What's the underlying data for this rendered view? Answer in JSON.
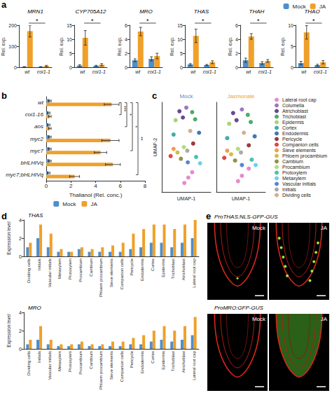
{
  "chart_data": [
    {
      "panel": "a",
      "type": "bar",
      "title": "MRN1",
      "categories": [
        "wt",
        "coi1-1"
      ],
      "y_label": "Rel. exp.",
      "ylim": [
        0,
        200
      ],
      "yticks": [
        0,
        100,
        200
      ],
      "annotations": [
        "*"
      ],
      "series": [
        {
          "name": "Mock",
          "color": "#4e8fc9",
          "values": [
            2,
            2
          ],
          "errors": [
            1,
            1
          ]
        },
        {
          "name": "JA",
          "color": "#f0a02a",
          "values": [
            172,
            6
          ],
          "errors": [
            28,
            3
          ]
        }
      ]
    },
    {
      "panel": "a",
      "type": "bar",
      "title": "CYP705A12",
      "categories": [
        "wt",
        "coi1-1"
      ],
      "y_label": "Rel. exp.",
      "ylim": [
        0,
        15
      ],
      "yticks": [
        0,
        5,
        10,
        15
      ],
      "annotations": [
        "*"
      ],
      "series": [
        {
          "name": "Mock",
          "color": "#4e8fc9",
          "values": [
            0.6,
            0.5
          ],
          "errors": [
            0.3,
            0.2
          ]
        },
        {
          "name": "JA",
          "color": "#f0a02a",
          "values": [
            10.5,
            0.9
          ],
          "errors": [
            2.6,
            0.4
          ]
        }
      ]
    },
    {
      "panel": "a",
      "type": "bar",
      "title": "MRO",
      "categories": [
        "wt",
        "coi1-1"
      ],
      "y_label": "Rel. exp.",
      "ylim": [
        0,
        6
      ],
      "yticks": [
        0,
        2,
        4,
        6
      ],
      "annotations": [
        "*"
      ],
      "series": [
        {
          "name": "Mock",
          "color": "#4e8fc9",
          "values": [
            1,
            1.2
          ],
          "errors": [
            0.2,
            0.3
          ]
        },
        {
          "name": "JA",
          "color": "#f0a02a",
          "values": [
            5.1,
            1.6
          ],
          "errors": [
            0.6,
            0.4
          ]
        }
      ]
    },
    {
      "panel": "a",
      "type": "bar",
      "title": "THAS",
      "categories": [
        "wt",
        "coi1-1"
      ],
      "y_label": "Rel. exp.",
      "ylim": [
        0,
        15
      ],
      "yticks": [
        0,
        5,
        10,
        15
      ],
      "annotations": [
        "*"
      ],
      "series": [
        {
          "name": "Mock",
          "color": "#4e8fc9",
          "values": [
            1,
            0.8
          ],
          "errors": [
            0.3,
            0.2
          ]
        },
        {
          "name": "JA",
          "color": "#f0a02a",
          "values": [
            11.2,
            1.8
          ],
          "errors": [
            2.4,
            0.5
          ]
        }
      ]
    },
    {
      "panel": "a",
      "type": "bar",
      "title": "THAH",
      "categories": [
        "wt",
        "coi1-1"
      ],
      "y_label": "Rel. exp.",
      "ylim": [
        0,
        6
      ],
      "yticks": [
        0,
        2,
        4,
        6
      ],
      "annotations": [
        "*"
      ],
      "series": [
        {
          "name": "Mock",
          "color": "#4e8fc9",
          "values": [
            1,
            0.6
          ],
          "errors": [
            0.3,
            0.2
          ]
        },
        {
          "name": "JA",
          "color": "#f0a02a",
          "values": [
            4.4,
            0.9
          ],
          "errors": [
            0.4,
            0.2
          ]
        }
      ]
    },
    {
      "panel": "a",
      "type": "bar",
      "title": "THAO",
      "categories": [
        "wt",
        "coi1-1"
      ],
      "y_label": "Rel. exp.",
      "ylim": [
        0,
        10
      ],
      "yticks": [
        0,
        5,
        10
      ],
      "annotations": [
        "*"
      ],
      "legend": "top-right",
      "series": [
        {
          "name": "Mock",
          "color": "#4e8fc9",
          "values": [
            1,
            0.5
          ],
          "errors": [
            0.4,
            0.2
          ]
        },
        {
          "name": "JA",
          "color": "#f0a02a",
          "values": [
            8.3,
            1.2
          ],
          "errors": [
            1.6,
            0.4
          ]
        }
      ]
    },
    {
      "panel": "b",
      "type": "bar",
      "orientation": "horizontal",
      "categories": [
        "wt",
        "coi1-16",
        "aos",
        "myc2",
        "myc7",
        "bHLHIVq",
        "myc7;bHLHIVq"
      ],
      "x_label": "Thalianol (Rel. conc.)",
      "xlim": [
        0,
        8
      ],
      "xticks": [
        0,
        2,
        4,
        6,
        8
      ],
      "legend": "bottom",
      "series": [
        {
          "name": "Mock",
          "color": "#4e8fc9",
          "values": [
            0.3,
            0.2,
            0.2,
            0.3,
            0.3,
            0.3,
            0.2
          ],
          "errors": [
            0.1,
            0.1,
            0.1,
            0.1,
            0.1,
            0.1,
            0.1
          ]
        },
        {
          "name": "JA",
          "color": "#f0a02a",
          "values": [
            5.3,
            0.3,
            0.3,
            5.2,
            4.4,
            5.4,
            2.3
          ],
          "errors": [
            0.6,
            0.1,
            0.1,
            0.7,
            0.5,
            0.6,
            0.4
          ]
        }
      ],
      "annotations": [
        {
          "from": "wt",
          "to": "coi1-16",
          "text": "***"
        },
        {
          "from": "wt",
          "to": "aos",
          "text": "*"
        },
        {
          "from": "wt",
          "to": "myc7",
          "text": "*"
        },
        {
          "from": "wt",
          "to": "myc7;bHLHIVq",
          "text": "**"
        }
      ]
    },
    {
      "panel": "c",
      "type": "scatter",
      "title": "Mock",
      "color": "#4e8fc9",
      "x_label": "UMAP-1",
      "y_label": "UMAP-2",
      "xlim": [
        0,
        10
      ],
      "ylim": [
        0,
        10
      ],
      "tick_labels": false,
      "series": [
        {
          "name": "Lateral root cap",
          "color": "#e377c2",
          "values": [
            [
              4.6,
              1.0
            ],
            [
              5.4,
              1.6
            ],
            [
              6.2,
              2.2
            ]
          ]
        },
        {
          "name": "Columella",
          "color": "#8e5fb5",
          "values": [
            [
              5.0,
              9.4
            ]
          ]
        },
        {
          "name": "Atrichoblast",
          "color": "#4b2a7b",
          "values": [
            [
              3.6,
              9.0
            ],
            [
              4.3,
              8.3
            ]
          ]
        },
        {
          "name": "Trichoblast",
          "color": "#2e9e4f",
          "values": [
            [
              6.2,
              8.9
            ],
            [
              6.8,
              8.1
            ]
          ]
        },
        {
          "name": "Epidermis",
          "color": "#9acd5a",
          "values": [
            [
              2.8,
              8.0
            ]
          ]
        },
        {
          "name": "Cortex",
          "color": "#1f9e9e",
          "values": [
            [
              2.4,
              6.4
            ]
          ]
        },
        {
          "name": "Endodermis",
          "color": "#1f5fa8",
          "values": [
            [
              7.6,
              6.6
            ]
          ]
        },
        {
          "name": "Pericycle",
          "color": "#8b1a1a",
          "values": [
            [
              6.4,
              5.4
            ]
          ]
        },
        {
          "name": "Companion cells",
          "color": "#d62728",
          "values": [
            [
              1.8,
              4.0
            ]
          ]
        },
        {
          "name": "Sieve elements",
          "color": "#f08c2a",
          "values": [
            [
              2.4,
              4.8
            ]
          ]
        },
        {
          "name": "Phloem procambium",
          "color": "#c9b22e",
          "values": [
            [
              3.2,
              4.4
            ]
          ]
        },
        {
          "name": "Cambium",
          "color": "#7f7f2a",
          "values": [
            [
              3.9,
              3.7
            ]
          ]
        },
        {
          "name": "Procambium",
          "color": "#a5d66b",
          "values": [
            [
              4.5,
              5.0
            ]
          ]
        },
        {
          "name": "Protoxylem",
          "color": "#2ab7a0",
          "values": [
            [
              7.0,
              3.9
            ]
          ]
        },
        {
          "name": "Metaxylem",
          "color": "#55c8e8",
          "values": [
            [
              7.8,
              3.2
            ]
          ]
        },
        {
          "name": "Vascular initials",
          "color": "#3b6fd1",
          "values": [
            [
              5.3,
              3.3
            ]
          ]
        },
        {
          "name": "Initials",
          "color": "#9a9a9a",
          "values": [
            [
              5.2,
              4.6
            ]
          ]
        },
        {
          "name": "Dividing cells",
          "color": "#c9a27a",
          "values": [
            [
              5.8,
              6.8
            ]
          ]
        }
      ]
    },
    {
      "panel": "c",
      "type": "scatter",
      "title": "Jasmonate",
      "color": "#f0a02a",
      "x_label": "UMAP-1",
      "xlim": [
        0,
        10
      ],
      "ylim": [
        0,
        10
      ],
      "tick_labels": false,
      "legend": "right",
      "series": [
        {
          "name": "Lateral root cap",
          "color": "#e377c2",
          "values": [
            [
              4.4,
              1.2
            ],
            [
              5.2,
              1.8
            ],
            [
              6.6,
              2.6
            ]
          ]
        },
        {
          "name": "Columella",
          "color": "#8e5fb5",
          "values": [
            [
              5.2,
              9.2
            ]
          ]
        },
        {
          "name": "Atrichoblast",
          "color": "#4b2a7b",
          "values": [
            [
              3.4,
              8.8
            ],
            [
              4.1,
              8.0
            ]
          ]
        },
        {
          "name": "Trichoblast",
          "color": "#2e9e4f",
          "values": [
            [
              6.4,
              8.6
            ],
            [
              7.0,
              7.8
            ]
          ]
        },
        {
          "name": "Epidermis",
          "color": "#9acd5a",
          "values": [
            [
              2.6,
              7.6
            ]
          ]
        },
        {
          "name": "Cortex",
          "color": "#1f9e9e",
          "values": [
            [
              2.2,
              6.0
            ]
          ]
        },
        {
          "name": "Endodermis",
          "color": "#1f5fa8",
          "values": [
            [
              7.8,
              6.2
            ]
          ]
        },
        {
          "name": "Pericycle",
          "color": "#8b1a1a",
          "values": [
            [
              6.6,
              5.2
            ]
          ]
        },
        {
          "name": "Companion cells",
          "color": "#d62728",
          "values": [
            [
              1.6,
              3.8
            ]
          ]
        },
        {
          "name": "Sieve elements",
          "color": "#f08c2a",
          "values": [
            [
              2.2,
              4.6
            ]
          ]
        },
        {
          "name": "Phloem procambium",
          "color": "#c9b22e",
          "values": [
            [
              3.0,
              4.2
            ]
          ]
        },
        {
          "name": "Cambium",
          "color": "#7f7f2a",
          "values": [
            [
              3.8,
              3.5
            ]
          ]
        },
        {
          "name": "Procambium",
          "color": "#a5d66b",
          "values": [
            [
              4.4,
              4.8
            ]
          ]
        },
        {
          "name": "Protoxylem",
          "color": "#2ab7a0",
          "values": [
            [
              7.2,
              3.6
            ]
          ]
        },
        {
          "name": "Metaxylem",
          "color": "#55c8e8",
          "values": [
            [
              8.0,
              3.0
            ]
          ]
        },
        {
          "name": "Vascular initials",
          "color": "#3b6fd1",
          "values": [
            [
              5.2,
              3.0
            ]
          ]
        },
        {
          "name": "Initials",
          "color": "#9a9a9a",
          "values": [
            [
              5.0,
              4.4
            ]
          ]
        },
        {
          "name": "Dividing cells",
          "color": "#c9a27a",
          "values": [
            [
              5.6,
              6.6
            ]
          ]
        }
      ]
    },
    {
      "panel": "d",
      "type": "bar",
      "title": "THAS",
      "y_label": "Expression level",
      "ylim": [
        0,
        4
      ],
      "yticks": [
        0,
        2,
        4
      ],
      "categories": [
        "Dividing cells",
        "Initials",
        "Vascular initials",
        "Metaxylem",
        "Protoxylem",
        "Procambium",
        "Cambium",
        "Phloem procambium",
        "Sieve elements",
        "Companion cells",
        "Pericycle",
        "Endodermis",
        "Cortex",
        "Epidermis",
        "Trichoblast",
        "Atrichoblast",
        "Lateral root cap"
      ],
      "series": [
        {
          "color": "#4e8fc9",
          "values": [
            1,
            2,
            1,
            0.5,
            0.5,
            0.8,
            0.5,
            0.5,
            0.5,
            0.5,
            0.8,
            1,
            1.5,
            1.5,
            1,
            1.5,
            2
          ]
        },
        {
          "color": "#f0a02a",
          "values": [
            1.5,
            3.5,
            2.5,
            0.8,
            0.5,
            1,
            0.8,
            1,
            1.2,
            1.5,
            2.5,
            3,
            3.5,
            3.5,
            3,
            3.5,
            4
          ]
        }
      ]
    },
    {
      "panel": "d",
      "type": "bar",
      "title": "MRO",
      "y_label": "Expression level",
      "ylim": [
        0,
        4
      ],
      "yticks": [
        0,
        2,
        4
      ],
      "categories": [
        "Dividing cells",
        "Initials",
        "Vascular initials",
        "Metaxylem",
        "Protoxylem",
        "Procambium",
        "Cambium",
        "Phloem procambium",
        "Sieve elements",
        "Companion cells",
        "Pericycle",
        "Endodermis",
        "Cortex",
        "Epidermis",
        "Trichoblast",
        "Atrichoblast",
        "Lateral root cap"
      ],
      "series": [
        {
          "color": "#4e8fc9",
          "values": [
            0.5,
            1,
            0.5,
            0.3,
            0.3,
            0.5,
            0.3,
            0.3,
            0.3,
            0.3,
            0.5,
            0.5,
            0.8,
            1,
            0.8,
            1,
            1.5
          ]
        },
        {
          "color": "#f0a02a",
          "values": [
            1,
            2.5,
            1,
            0.5,
            0.5,
            0.8,
            0.5,
            0.5,
            0.8,
            0.8,
            1.2,
            1.5,
            2,
            2.5,
            2,
            2.5,
            3.5
          ]
        }
      ]
    }
  ],
  "panel_e": {
    "panel": "e",
    "rows": [
      {
        "title": "ProTHAS:NLS-GFP-GUS",
        "conditions": [
          "Mock",
          "JA"
        ]
      },
      {
        "title": "ProMRO:GFP-GUS",
        "conditions": [
          "Mock",
          "JA"
        ]
      }
    ]
  }
}
